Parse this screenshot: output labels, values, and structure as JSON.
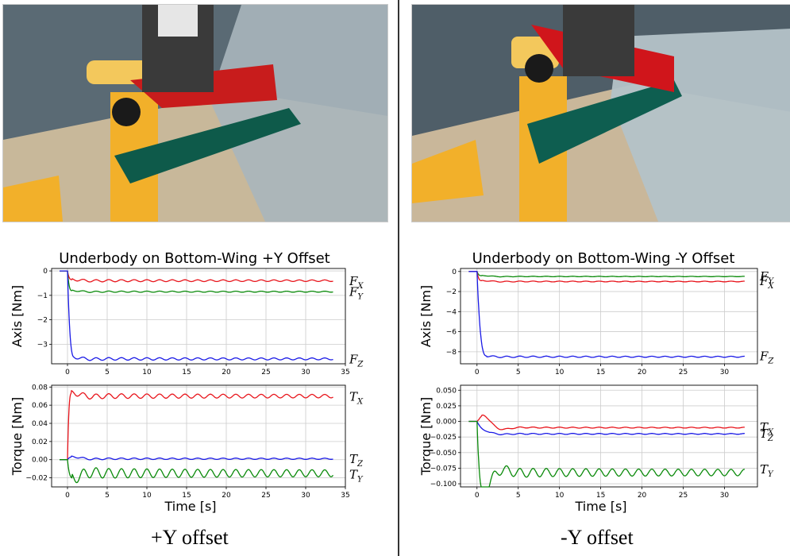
{
  "captions": {
    "left": "+Y offset",
    "right": "-Y offset"
  },
  "photos": {
    "left": {
      "icon": "robot-gripper-photo",
      "colors": {
        "wall": "#5a6a74",
        "table": "#c8b89a",
        "yellow": "#f2b02a",
        "green": "#0e5a4a",
        "red": "#c81c1c",
        "glass": "#a9b6bd"
      }
    },
    "right": {
      "icon": "robot-gripper-photo",
      "colors": {
        "wall": "#4f5e68",
        "table": "#c9b79a",
        "yellow": "#f2b02a",
        "green": "#0e5e50",
        "red": "#d0151b",
        "glass": "#b4c2c8"
      }
    }
  },
  "colors": {
    "x": "#e8141b",
    "y": "#0a8a0a",
    "z": "#1a1ae6",
    "grid": "#cccccc"
  },
  "chart_data": [
    {
      "type": "line",
      "title": "Underbody on Bottom-Wing +Y Offset",
      "ylabel": "Axis [Nm]",
      "xlabel": "",
      "xlim": [
        -2,
        35
      ],
      "ylim": [
        -3.8,
        0.1
      ],
      "xticks": [
        0,
        5,
        10,
        15,
        20,
        25,
        30,
        35
      ],
      "yticks": [
        0,
        -1,
        -2,
        -3
      ],
      "grid": true,
      "series": [
        {
          "name": "F_X",
          "label_main": "F",
          "label_sub": "X",
          "color": "x",
          "start": 0,
          "end": -0.4,
          "amp": 0.05,
          "overshoot": 0.1,
          "rise": 0.6,
          "period": 1.6
        },
        {
          "name": "F_Y",
          "label_main": "F",
          "label_sub": "Y",
          "color": "y",
          "start": 0,
          "end": -0.85,
          "amp": 0.03,
          "overshoot": 0.1,
          "rise": 0.6,
          "period": 1.6
        },
        {
          "name": "F_Z",
          "label_main": "F",
          "label_sub": "Z",
          "color": "z",
          "start": 0,
          "end": -3.6,
          "amp": 0.06,
          "overshoot": 0.15,
          "rise": 0.9,
          "period": 1.6
        }
      ]
    },
    {
      "type": "line",
      "title": "",
      "ylabel": "Torque [Nm]",
      "xlabel": "Time [s]",
      "xlim": [
        -2,
        35
      ],
      "ylim": [
        -0.03,
        0.082
      ],
      "xticks": [
        0,
        5,
        10,
        15,
        20,
        25,
        30,
        35
      ],
      "yticks": [
        0.08,
        0.06,
        0.04,
        0.02,
        0.0,
        -0.02
      ],
      "ytick_labels": [
        "0.08",
        "0.06",
        "0.04",
        "0.02",
        "0.00",
        "−0.02"
      ],
      "grid": true,
      "series": [
        {
          "name": "T_X",
          "label_main": "T",
          "label_sub": "X",
          "color": "x",
          "start": 0,
          "end": 0.07,
          "amp": 0.003,
          "overshoot": 0.008,
          "rise": 0.5,
          "period": 1.6
        },
        {
          "name": "T_Z",
          "label_main": "T",
          "label_sub": "Z",
          "color": "z",
          "start": 0,
          "end": 0.001,
          "amp": 0.001,
          "overshoot": 0.005,
          "rise": 0.5,
          "period": 1.6
        },
        {
          "name": "T_Y",
          "label_main": "T",
          "label_sub": "Y",
          "color": "y",
          "start": 0,
          "end": -0.015,
          "amp": 0.006,
          "overshoot": -0.012,
          "rise": 0.6,
          "period": 1.6
        }
      ]
    },
    {
      "type": "line",
      "title": "Underbody on Bottom-Wing -Y Offset",
      "ylabel": "Axis [Nm]",
      "xlabel": "",
      "xlim": [
        -2,
        34
      ],
      "ylim": [
        -9.2,
        0.3
      ],
      "xticks": [
        0,
        5,
        10,
        15,
        20,
        25,
        30
      ],
      "yticks": [
        0,
        -2,
        -4,
        -6,
        -8
      ],
      "grid": true,
      "series": [
        {
          "name": "F_Y",
          "label_main": "F",
          "label_sub": "Y",
          "color": "y",
          "start": 0,
          "end": -0.5,
          "amp": 0.03,
          "overshoot": 0.2,
          "rise": 0.6,
          "period": 1.6
        },
        {
          "name": "F_X",
          "label_main": "F",
          "label_sub": "X",
          "color": "x",
          "start": 0,
          "end": -1.0,
          "amp": 0.05,
          "overshoot": 0.2,
          "rise": 0.6,
          "period": 1.6
        },
        {
          "name": "F_Z",
          "label_main": "F",
          "label_sub": "Z",
          "color": "z",
          "start": 0,
          "end": -8.5,
          "amp": 0.08,
          "overshoot": 0.2,
          "rise": 1.2,
          "period": 1.6
        }
      ]
    },
    {
      "type": "line",
      "title": "",
      "ylabel": "Torque [Nm]",
      "xlabel": "Time [s]",
      "xlim": [
        -2,
        34
      ],
      "ylim": [
        -0.105,
        0.058
      ],
      "xticks": [
        0,
        5,
        10,
        15,
        20,
        25,
        30
      ],
      "yticks": [
        0.05,
        0.025,
        0.0,
        -0.025,
        -0.05,
        -0.075,
        -0.1
      ],
      "ytick_labels": [
        "0.050",
        "0.025",
        "0.000",
        "−0.025",
        "−0.050",
        "−0.075",
        "−0.100"
      ],
      "grid": true,
      "series": [
        {
          "name": "T_X",
          "label_main": "T",
          "label_sub": "X",
          "color": "x",
          "start": 0,
          "end": -0.01,
          "amp": 0.001,
          "overshoot": 0.045,
          "rise": 0.6,
          "period": 1.6
        },
        {
          "name": "T_Z",
          "label_main": "T",
          "label_sub": "Z",
          "color": "z",
          "start": 0,
          "end": -0.02,
          "amp": 0.001,
          "overshoot": 0.01,
          "rise": 1.5,
          "period": 1.6
        },
        {
          "name": "T_Y",
          "label_main": "T",
          "label_sub": "Y",
          "color": "y",
          "start": 0,
          "end": -0.082,
          "amp": 0.008,
          "overshoot": -0.07,
          "rise": 0.8,
          "period": 1.6
        }
      ]
    }
  ]
}
